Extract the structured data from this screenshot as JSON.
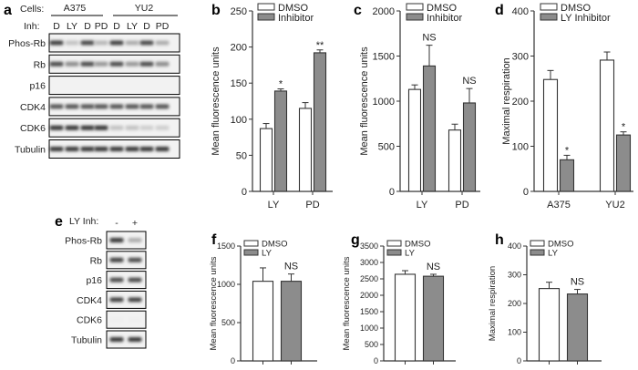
{
  "panels": {
    "a": {
      "label": "a",
      "cells_label": "Cells:",
      "inh_label": "Inh:",
      "cell_lines": [
        "A375",
        "YU2"
      ],
      "lanes": [
        "D",
        "LY",
        "D",
        "PD",
        "D",
        "LY",
        "D",
        "PD"
      ],
      "blots": [
        "Phos-Rb",
        "Rb",
        "p16",
        "CDK4",
        "CDK6",
        "Tubulin"
      ]
    },
    "e": {
      "label": "e",
      "inh_label": "LY Inh:",
      "lanes": [
        "-",
        "+"
      ],
      "blots": [
        "Phos-Rb",
        "Rb",
        "p16",
        "CDK4",
        "CDK6",
        "Tubulin"
      ]
    }
  },
  "chart_data": [
    {
      "id": "b",
      "label": "b",
      "type": "bar",
      "ylabel": "Mean fluorescence units",
      "ylim": [
        0,
        250
      ],
      "yticks": [
        0,
        50,
        100,
        150,
        200,
        250
      ],
      "categories": [
        "LY",
        "PD"
      ],
      "series": [
        {
          "name": "DMSO",
          "color": "#ffffff",
          "values": [
            87,
            115
          ],
          "errors": [
            7,
            8
          ]
        },
        {
          "name": "Inhibitor",
          "color": "#8c8c8c",
          "values": [
            139,
            192
          ],
          "errors": [
            3,
            4
          ]
        }
      ],
      "annotations": [
        {
          "category": 0,
          "series": 1,
          "text": "*"
        },
        {
          "category": 1,
          "series": 1,
          "text": "**"
        }
      ]
    },
    {
      "id": "c",
      "label": "c",
      "type": "bar",
      "ylabel": "Mean fluorescence units",
      "ylim": [
        0,
        2000
      ],
      "yticks": [
        0,
        500,
        1000,
        1500,
        2000
      ],
      "categories": [
        "LY",
        "PD"
      ],
      "series": [
        {
          "name": "DMSO",
          "color": "#ffffff",
          "values": [
            1130,
            680
          ],
          "errors": [
            50,
            65
          ]
        },
        {
          "name": "Inhibitor",
          "color": "#8c8c8c",
          "values": [
            1390,
            980
          ],
          "errors": [
            230,
            160
          ]
        }
      ],
      "annotations": [
        {
          "category": 0,
          "series": 1,
          "text": "NS"
        },
        {
          "category": 1,
          "series": 1,
          "text": "NS"
        }
      ]
    },
    {
      "id": "d",
      "label": "d",
      "type": "bar",
      "ylabel": "Maximal respiration",
      "ylim": [
        0,
        400
      ],
      "yticks": [
        0,
        100,
        200,
        300,
        400
      ],
      "categories": [
        "A375",
        "YU2"
      ],
      "series": [
        {
          "name": "DMSO",
          "color": "#ffffff",
          "values": [
            248,
            291
          ],
          "errors": [
            20,
            18
          ]
        },
        {
          "name": "LY Inhibitor",
          "color": "#8c8c8c",
          "values": [
            70,
            125
          ],
          "errors": [
            10,
            7
          ]
        }
      ],
      "annotations": [
        {
          "category": 0,
          "series": 1,
          "text": "*"
        },
        {
          "category": 1,
          "series": 1,
          "text": "*"
        }
      ]
    },
    {
      "id": "f",
      "label": "f",
      "type": "bar",
      "ylabel": "Mean fluorescence units",
      "ylim": [
        0,
        1500
      ],
      "yticks": [
        0,
        500,
        1000,
        1500
      ],
      "categories": [
        ""
      ],
      "series": [
        {
          "name": "DMSO",
          "color": "#ffffff",
          "values": [
            1040
          ],
          "errors": [
            175
          ]
        },
        {
          "name": "LY",
          "color": "#8c8c8c",
          "values": [
            1040
          ],
          "errors": [
            95
          ]
        }
      ],
      "annotations": [
        {
          "category": 0,
          "series": 1,
          "text": "NS"
        }
      ]
    },
    {
      "id": "g",
      "label": "g",
      "type": "bar",
      "ylabel": "Mean fluorescence units",
      "ylim": [
        0,
        3500
      ],
      "yticks": [
        0,
        500,
        1000,
        1500,
        2000,
        2500,
        3000,
        3500
      ],
      "categories": [
        ""
      ],
      "series": [
        {
          "name": "DMSO",
          "color": "#ffffff",
          "values": [
            2640
          ],
          "errors": [
            110
          ]
        },
        {
          "name": "LY",
          "color": "#8c8c8c",
          "values": [
            2580
          ],
          "errors": [
            60
          ]
        }
      ],
      "annotations": [
        {
          "category": 0,
          "series": 1,
          "text": "NS"
        }
      ]
    },
    {
      "id": "h",
      "label": "h",
      "type": "bar",
      "ylabel": "Maximal respiration",
      "ylim": [
        0,
        400
      ],
      "yticks": [
        0,
        100,
        200,
        300,
        400
      ],
      "categories": [
        ""
      ],
      "series": [
        {
          "name": "DMSO",
          "color": "#ffffff",
          "values": [
            252
          ],
          "errors": [
            22
          ]
        },
        {
          "name": "LY",
          "color": "#8c8c8c",
          "values": [
            233
          ],
          "errors": [
            16
          ]
        }
      ],
      "annotations": [
        {
          "category": 0,
          "series": 1,
          "text": "NS"
        }
      ]
    }
  ]
}
